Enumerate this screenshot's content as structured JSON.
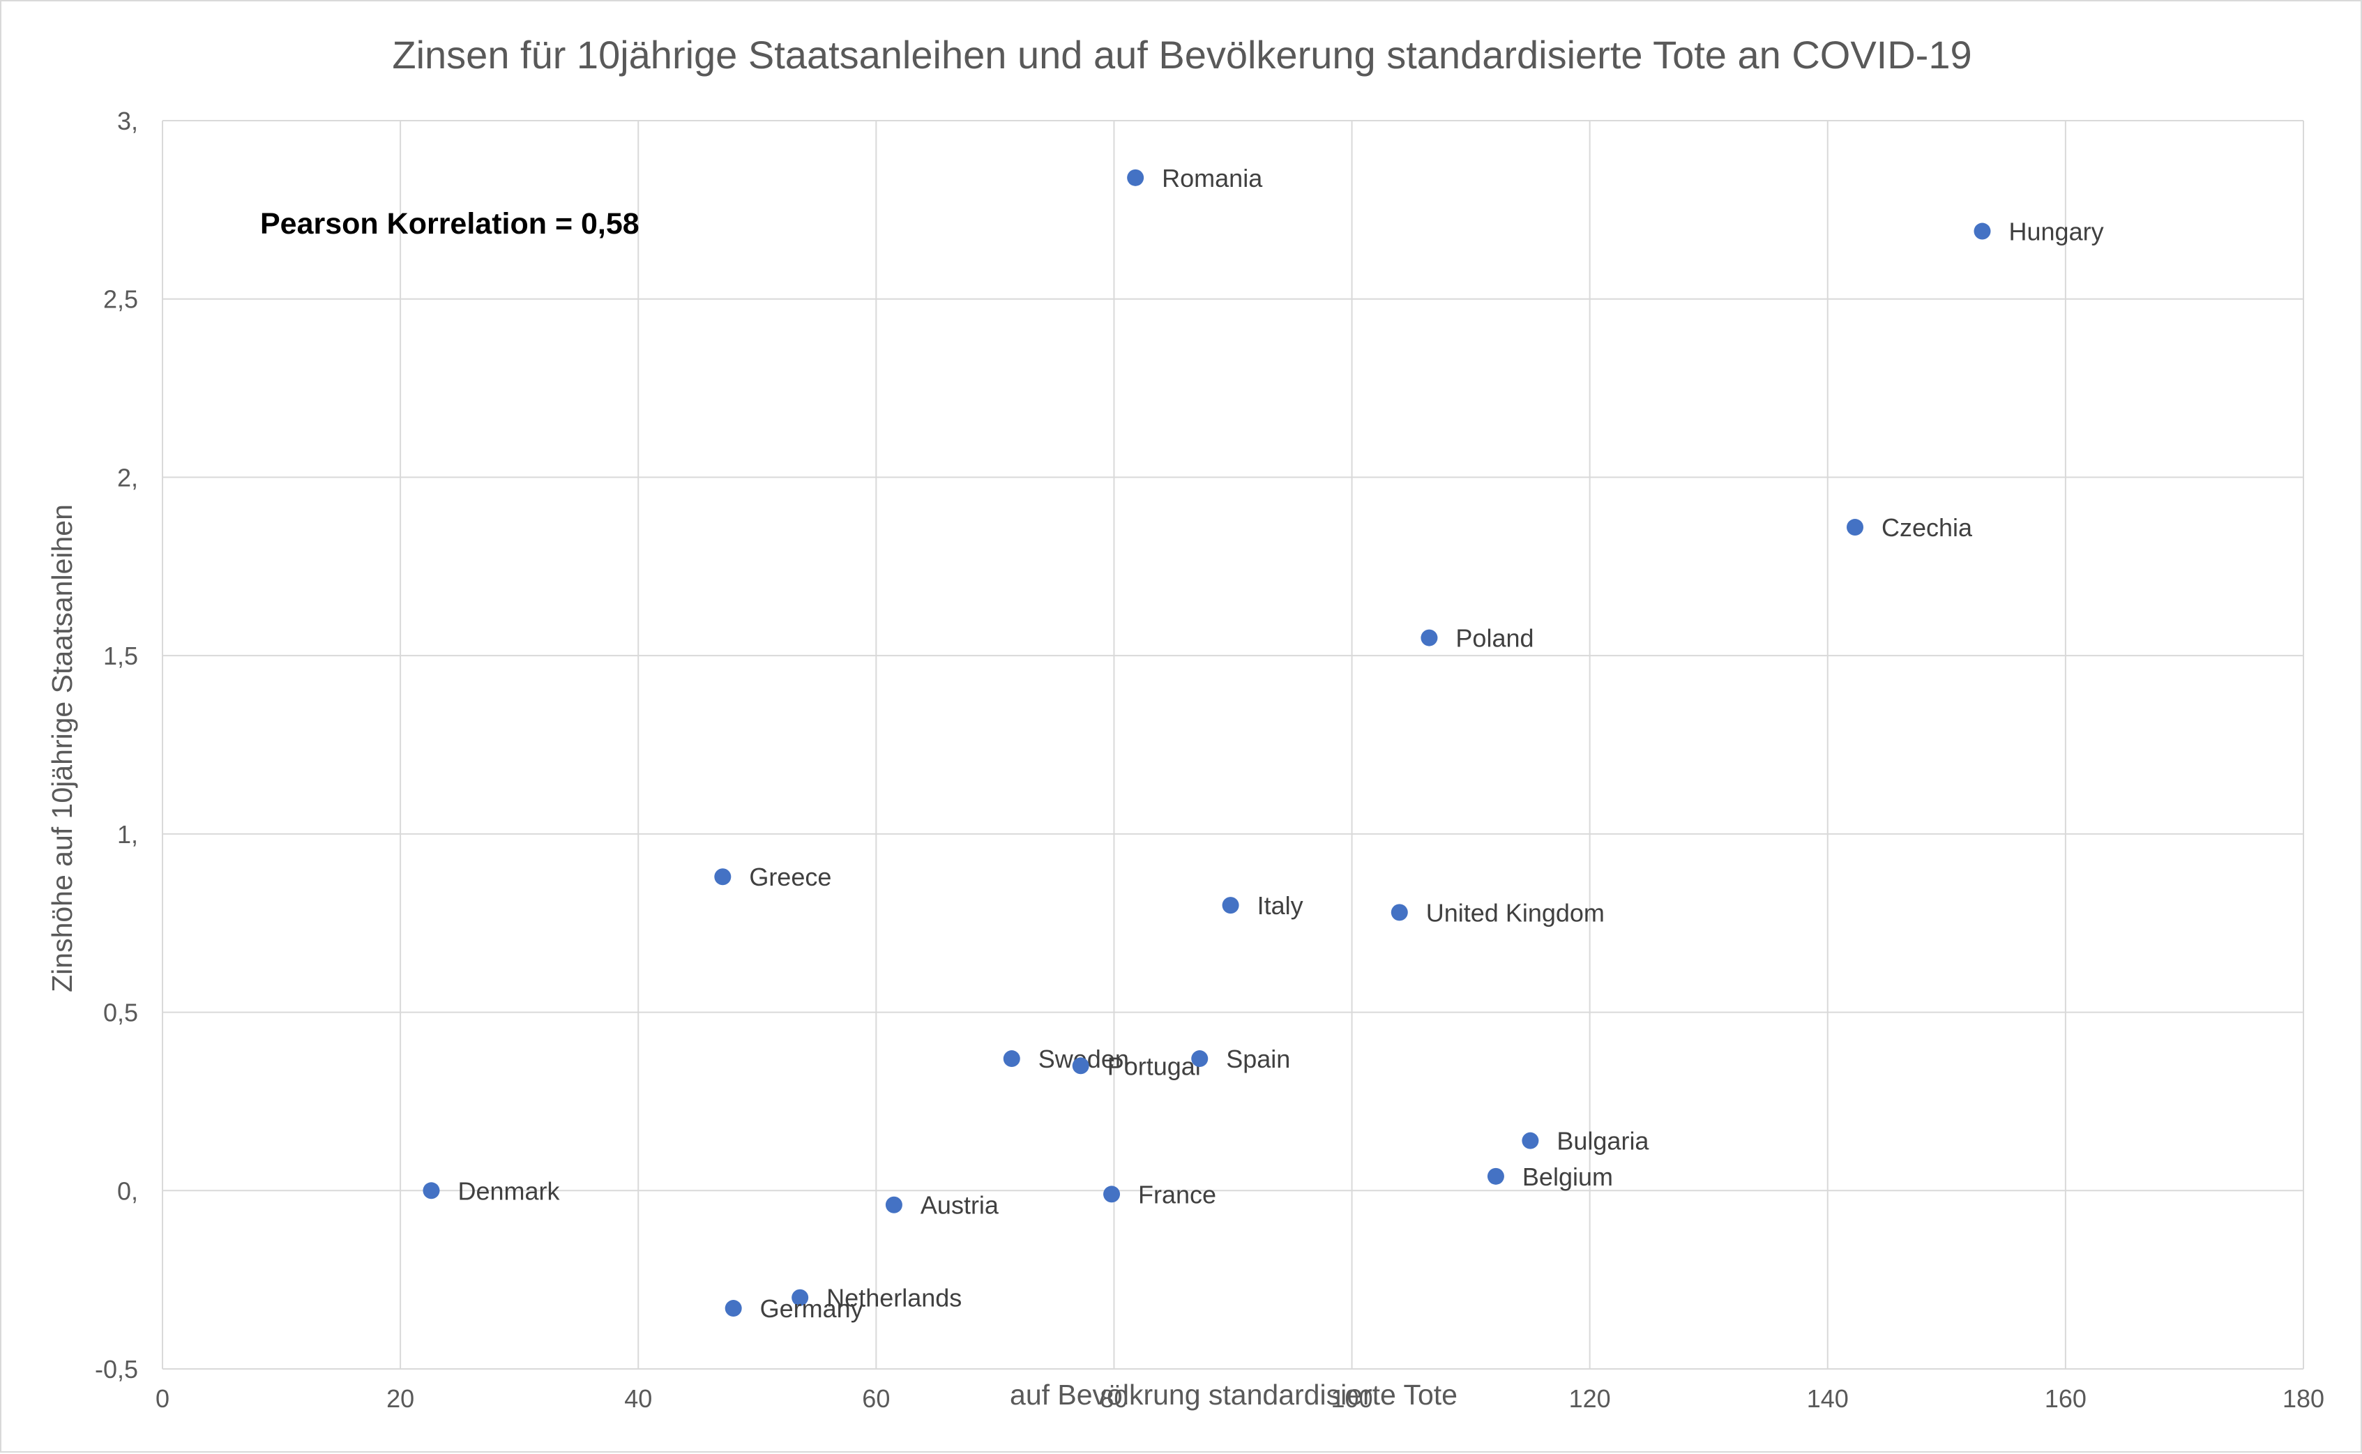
{
  "chart_data": {
    "type": "scatter",
    "title": "Zinsen für 10jährige Staatsanleihen und auf Bevölkerung standardisierte Tote an COVID-19",
    "xlabel": "auf Bevölkrung standardisierte Tote",
    "ylabel": "Zinshöhe auf 10jährige Staatsanleihen",
    "xlim": [
      0,
      180
    ],
    "ylim": [
      -0.5,
      3
    ],
    "x_ticks": [
      "0",
      "20",
      "40",
      "60",
      "80",
      "100",
      "120",
      "140",
      "160",
      "180"
    ],
    "y_ticks": [
      "3,",
      "2,5",
      "2,",
      "1,5",
      "1,",
      "0,5",
      "0,",
      "-0,5"
    ],
    "grid": true,
    "annotation": "Pearson Korrelation = 0,58",
    "marker_color": "#4472c4",
    "points": [
      {
        "label": "Romania",
        "x": 81.8,
        "y": 2.84
      },
      {
        "label": "Hungary",
        "x": 153.0,
        "y": 2.69
      },
      {
        "label": "Czechia",
        "x": 142.3,
        "y": 1.86
      },
      {
        "label": "Poland",
        "x": 106.5,
        "y": 1.55
      },
      {
        "label": "Greece",
        "x": 47.1,
        "y": 0.88
      },
      {
        "label": "Italy",
        "x": 89.8,
        "y": 0.8
      },
      {
        "label": "United Kingdom",
        "x": 104.0,
        "y": 0.78
      },
      {
        "label": "Sweden",
        "x": 71.4,
        "y": 0.37
      },
      {
        "label": "Portugal",
        "x": 77.2,
        "y": 0.35
      },
      {
        "label": "Spain",
        "x": 87.2,
        "y": 0.37
      },
      {
        "label": "Bulgaria",
        "x": 115.0,
        "y": 0.14
      },
      {
        "label": "Belgium",
        "x": 112.1,
        "y": 0.04
      },
      {
        "label": "Denmark",
        "x": 22.6,
        "y": 0.0
      },
      {
        "label": "France",
        "x": 79.8,
        "y": -0.01
      },
      {
        "label": "Austria",
        "x": 61.5,
        "y": -0.04
      },
      {
        "label": "Netherlands",
        "x": 53.6,
        "y": -0.3
      },
      {
        "label": "Germany",
        "x": 48.0,
        "y": -0.33
      }
    ]
  }
}
